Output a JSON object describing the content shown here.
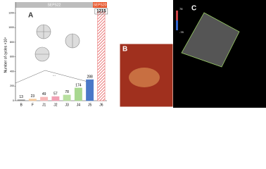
{
  "chart_data": {
    "type": "bar",
    "y_label": "Number of cycles ×10⁴",
    "categories": [
      "B",
      "F",
      "J1",
      "J2",
      "J3",
      "J4",
      "J5",
      "J6"
    ],
    "values": [
      13,
      23,
      49,
      57,
      78,
      174,
      288,
      1215
    ],
    "colors": [
      "#8c8c8c",
      "#f4c89a",
      "#f7b8b8",
      "#f2a0b4",
      "#b8e0a0",
      "#a8d890",
      "#4a78c8",
      "#e86060"
    ],
    "ylim": [
      0,
      1300
    ],
    "yticks": [
      0,
      200,
      400,
      600,
      800,
      1000,
      1200
    ],
    "groups": [
      "SEPS22",
      "SEPS20"
    ],
    "annotation": "...",
    "panels": [
      "A",
      "B",
      "C"
    ],
    "colorbar_labels": [
      "78",
      "-78"
    ]
  }
}
